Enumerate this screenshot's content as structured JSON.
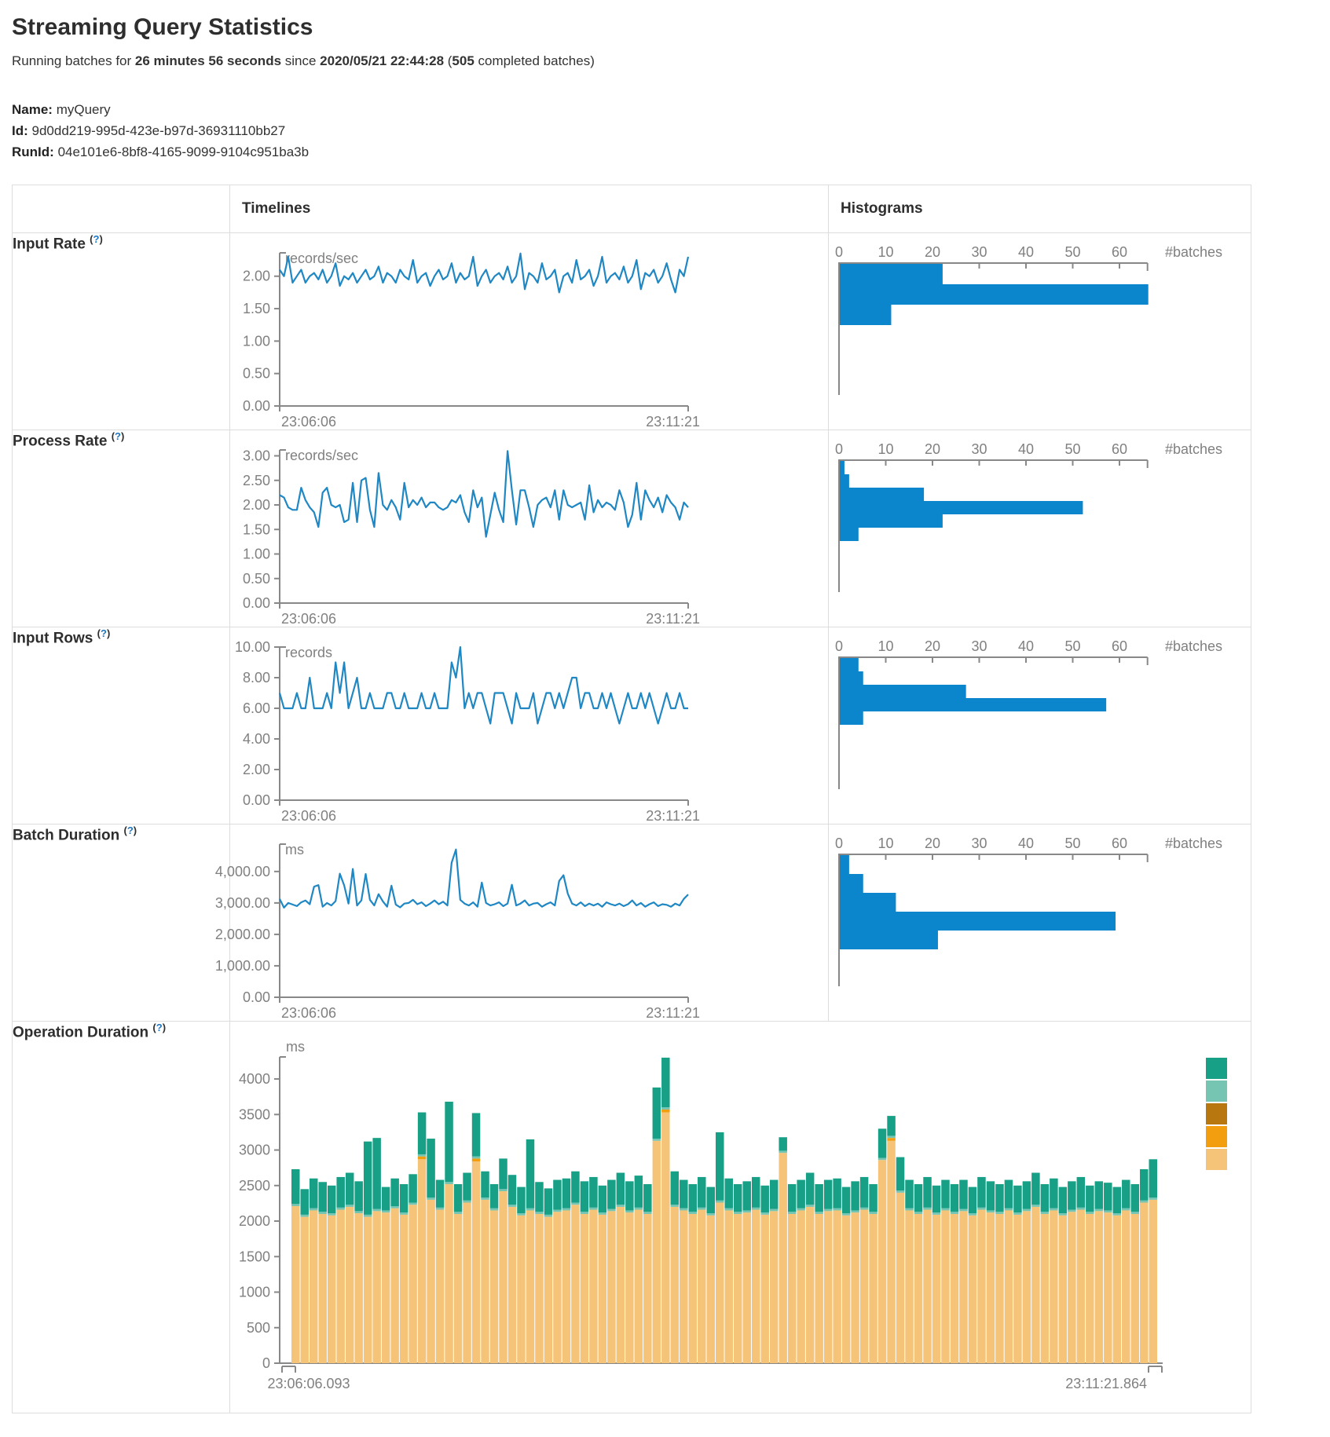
{
  "page": {
    "title": "Streaming Query Statistics",
    "subtitle": {
      "prefix": "Running batches for ",
      "duration": "26 minutes 56 seconds",
      "middle": " since ",
      "start_time": "2020/05/21 22:44:28",
      "paren": " (",
      "completed_batches": "505",
      "suffix": " completed batches)"
    },
    "query": {
      "name_label": "Name:",
      "name": "myQuery",
      "id_label": "Id:",
      "id": "9d0dd219-995d-423e-b97d-36931110bb27",
      "runid_label": "RunId:",
      "runid": "04e101e6-8bf8-4165-9099-9104c951ba3b"
    }
  },
  "help": {
    "open": "(",
    "q": "?",
    "close": ")"
  },
  "table": {
    "headers": {
      "timelines": "Timelines",
      "histograms": "Histograms"
    },
    "rows": [
      {
        "label": "Input Rate"
      },
      {
        "label": "Process Rate"
      },
      {
        "label": "Input Rows"
      },
      {
        "label": "Batch Duration"
      },
      {
        "label": "Operation Duration"
      }
    ]
  },
  "colors": {
    "timeline_line": "#1f87c3",
    "histogram_bar": "#0b85cc",
    "axis": "#888888",
    "tick_text": "#808080",
    "table_border": "#dddddd",
    "help_blue": "#1f77c0",
    "op_teal": "#17a086",
    "op_light_teal": "#75c5b2",
    "op_brown": "#b8770f",
    "op_orange": "#f29e0e",
    "op_light_orange": "#f6c478"
  },
  "chart_data": [
    {
      "id": "input-rate-timeline",
      "type": "line",
      "unit": "records/sec",
      "ymax": 2.36,
      "x_start": "23:06:06",
      "x_end": "23:11:21",
      "yticks": [
        {
          "v": 2,
          "t": "2.00"
        },
        {
          "v": 1.5,
          "t": "1.50"
        },
        {
          "v": 1,
          "t": "1.00"
        },
        {
          "v": 0.5,
          "t": "0.50"
        },
        {
          "v": 0,
          "t": "0.00"
        }
      ],
      "values": [
        2.1,
        2.0,
        2.3,
        1.9,
        2.0,
        2.1,
        1.9,
        2.0,
        2.05,
        1.95,
        2.1,
        1.9,
        2.0,
        2.2,
        1.85,
        2.0,
        1.95,
        2.05,
        1.9,
        2.0,
        2.1,
        1.95,
        2.0,
        2.15,
        1.9,
        2.05,
        2.0,
        1.9,
        2.1,
        2.0,
        1.95,
        2.25,
        1.9,
        2.0,
        2.05,
        1.85,
        2.0,
        2.1,
        1.95,
        2.0,
        2.2,
        1.9,
        2.05,
        1.95,
        2.0,
        2.3,
        1.85,
        2.0,
        2.1,
        1.9,
        2.0,
        2.05,
        1.95,
        2.15,
        1.9,
        2.0,
        2.35,
        1.8,
        2.05,
        2.0,
        1.9,
        2.2,
        1.95,
        2.0,
        2.1,
        1.75,
        2.0,
        2.05,
        1.9,
        2.25,
        1.95,
        2.0,
        2.1,
        1.85,
        2.0,
        2.3,
        1.9,
        2.0,
        2.05,
        1.95,
        2.15,
        1.9,
        2.0,
        2.25,
        1.8,
        2.05,
        2.0,
        2.1,
        1.9,
        2.0,
        2.2,
        1.95,
        1.75,
        2.1,
        2.0,
        2.3
      ]
    },
    {
      "id": "input-rate-histogram",
      "type": "hbar",
      "xlabel": "#batches",
      "xticks": [
        0,
        10,
        20,
        30,
        40,
        50,
        60
      ],
      "bin_height": 26,
      "values": [
        22,
        66,
        11
      ]
    },
    {
      "id": "process-rate-timeline",
      "type": "line",
      "unit": "records/sec",
      "ymax": 3.12,
      "x_start": "23:06:06",
      "x_end": "23:11:21",
      "yticks": [
        {
          "v": 3,
          "t": "3.00"
        },
        {
          "v": 2.5,
          "t": "2.50"
        },
        {
          "v": 2,
          "t": "2.00"
        },
        {
          "v": 1.5,
          "t": "1.50"
        },
        {
          "v": 1,
          "t": "1.00"
        },
        {
          "v": 0.5,
          "t": "0.50"
        },
        {
          "v": 0,
          "t": "0.00"
        }
      ],
      "values": [
        2.2,
        2.15,
        1.95,
        1.9,
        1.9,
        2.35,
        2.1,
        1.95,
        1.85,
        1.55,
        2.25,
        2.35,
        2.0,
        1.95,
        2.0,
        1.65,
        1.7,
        2.45,
        1.65,
        2.5,
        2.55,
        1.9,
        1.55,
        2.65,
        2.0,
        1.9,
        2.1,
        1.95,
        1.7,
        2.45,
        1.95,
        2.1,
        2.0,
        2.15,
        1.95,
        2.05,
        2.05,
        1.95,
        1.9,
        1.95,
        2.1,
        2.05,
        2.2,
        1.85,
        1.65,
        2.3,
        1.95,
        2.15,
        1.35,
        1.8,
        2.25,
        1.9,
        1.65,
        3.1,
        2.3,
        1.6,
        2.3,
        2.3,
        1.95,
        1.55,
        2.0,
        2.1,
        2.15,
        1.95,
        2.3,
        1.7,
        2.3,
        2.0,
        1.95,
        2.0,
        2.05,
        1.7,
        2.4,
        1.85,
        2.1,
        1.95,
        2.05,
        2.0,
        1.9,
        2.3,
        2.05,
        1.55,
        1.8,
        2.45,
        1.7,
        2.3,
        2.1,
        1.95,
        2.15,
        1.85,
        2.2,
        2.05,
        1.95,
        1.7,
        2.05,
        1.95
      ]
    },
    {
      "id": "process-rate-histogram",
      "type": "hbar",
      "xlabel": "#batches",
      "xticks": [
        0,
        10,
        20,
        30,
        40,
        50,
        60
      ],
      "bin_height": 17,
      "values": [
        1,
        2,
        18,
        52,
        22,
        4
      ]
    },
    {
      "id": "input-rows-timeline",
      "type": "line",
      "unit": "records",
      "ymax": 10,
      "x_start": "23:06:06",
      "x_end": "23:11:21",
      "yticks": [
        {
          "v": 10,
          "t": "10.00"
        },
        {
          "v": 8,
          "t": "8.00"
        },
        {
          "v": 6,
          "t": "6.00"
        },
        {
          "v": 4,
          "t": "4.00"
        },
        {
          "v": 2,
          "t": "2.00"
        },
        {
          "v": 0,
          "t": "0.00"
        }
      ],
      "values": [
        7,
        6,
        6,
        6,
        7,
        6,
        6,
        8,
        6,
        6,
        6,
        7,
        6,
        9,
        7,
        9,
        6,
        7,
        8,
        6,
        6,
        7,
        6,
        6,
        6,
        7,
        7,
        6,
        6,
        7,
        6,
        6,
        6,
        7,
        6,
        6,
        7,
        6,
        6,
        6,
        9,
        8,
        10,
        6,
        7,
        6,
        7,
        7,
        6,
        5,
        7,
        7,
        7,
        6,
        5,
        7,
        6,
        6,
        6,
        7,
        5,
        6,
        7,
        7,
        6,
        7,
        6,
        7,
        8,
        8,
        6,
        7,
        7,
        6,
        6,
        7,
        6,
        7,
        6,
        5,
        6,
        7,
        6,
        6,
        7,
        6,
        7,
        6,
        5,
        6,
        7,
        6,
        6,
        7,
        6,
        6
      ]
    },
    {
      "id": "input-rows-histogram",
      "type": "hbar",
      "xlabel": "#batches",
      "xticks": [
        0,
        10,
        20,
        30,
        40,
        50,
        60
      ],
      "bin_height": 17,
      "values": [
        4,
        5,
        27,
        57,
        5
      ]
    },
    {
      "id": "batch-duration-timeline",
      "type": "line",
      "unit": "ms",
      "ymax": 4870,
      "x_start": "23:06:06",
      "x_end": "23:11:21",
      "yticks": [
        {
          "v": 4000,
          "t": "4,000.00"
        },
        {
          "v": 3000,
          "t": "3,000.00"
        },
        {
          "v": 2000,
          "t": "2,000.00"
        },
        {
          "v": 1000,
          "t": "1,000.00"
        },
        {
          "v": 0,
          "t": "0.00"
        }
      ],
      "values": [
        3130,
        2850,
        3000,
        2950,
        2900,
        3020,
        3080,
        2960,
        3520,
        3570,
        2880,
        3000,
        2920,
        3060,
        3930,
        3560,
        2980,
        4080,
        2920,
        3080,
        3920,
        3100,
        2920,
        3280,
        3050,
        2880,
        3550,
        2950,
        2860,
        2980,
        3000,
        3100,
        2960,
        3020,
        2900,
        2980,
        3080,
        2960,
        3040,
        2920,
        4280,
        4700,
        3100,
        2980,
        2920,
        3020,
        2880,
        3650,
        3000,
        2920,
        2960,
        3020,
        2900,
        2980,
        3580,
        2920,
        2980,
        3080,
        2920,
        2980,
        3000,
        2880,
        2960,
        3020,
        2920,
        3700,
        3880,
        3300,
        2980,
        2920,
        3020,
        2900,
        2980,
        2920,
        2980,
        2880,
        3020,
        2960,
        2920,
        2980,
        2900,
        2960,
        3080,
        2920,
        3000,
        2880,
        2960,
        3020,
        2900,
        2960,
        2940,
        2880,
        2980,
        2920,
        3130,
        3270
      ]
    },
    {
      "id": "batch-duration-histogram",
      "type": "hbar",
      "xlabel": "#batches",
      "xticks": [
        0,
        10,
        20,
        30,
        40,
        50,
        60
      ],
      "bin_height": 24,
      "values": [
        2,
        5,
        12,
        59,
        21
      ]
    },
    {
      "id": "operation-duration",
      "type": "stacked",
      "unit": "ms",
      "ymax": 4310,
      "x_start": "23:06:06.093",
      "x_end": "23:11:21.864",
      "yticks": [
        {
          "v": 4000,
          "t": "4000"
        },
        {
          "v": 3500,
          "t": "3500"
        },
        {
          "v": 3000,
          "t": "3000"
        },
        {
          "v": 2500,
          "t": "2500"
        },
        {
          "v": 2000,
          "t": "2000"
        },
        {
          "v": 1500,
          "t": "1500"
        },
        {
          "v": 1000,
          "t": "1000"
        },
        {
          "v": 500,
          "t": "500"
        },
        {
          "v": 0,
          "t": "0"
        }
      ],
      "legend_colors": [
        "#17a086",
        "#75c5b2",
        "#b8770f",
        "#f29e0e",
        "#f6c478"
      ],
      "series": [
        {
          "name": "light-orange",
          "color": "#f6c478",
          "values": [
            2210,
            2060,
            2150,
            2100,
            2080,
            2160,
            2200,
            2110,
            2060,
            2140,
            2120,
            2180,
            2090,
            2230,
            2870,
            2300,
            2160,
            2520,
            2100,
            2260,
            2840,
            2300,
            2150,
            2420,
            2200,
            2080,
            2150,
            2100,
            2060,
            2130,
            2150,
            2230,
            2100,
            2160,
            2090,
            2140,
            2200,
            2120,
            2160,
            2100,
            3130,
            3530,
            2200,
            2150,
            2100,
            2160,
            2080,
            2260,
            2150,
            2100,
            2120,
            2160,
            2090,
            2140,
            2960,
            2100,
            2150,
            2200,
            2100,
            2140,
            2150,
            2080,
            2120,
            2160,
            2100,
            2860,
            3130,
            2400,
            2150,
            2100,
            2160,
            2090,
            2150,
            2100,
            2140,
            2080,
            2160,
            2120,
            2100,
            2150,
            2090,
            2140,
            2200,
            2100,
            2150,
            2080,
            2130,
            2160,
            2100,
            2140,
            2120,
            2080,
            2150,
            2100,
            2260,
            2300
          ]
        },
        {
          "name": "orange",
          "color": "#f29e0e",
          "values": [
            0,
            0,
            0,
            0,
            0,
            0,
            0,
            0,
            0,
            0,
            0,
            0,
            0,
            0,
            40,
            0,
            0,
            0,
            0,
            0,
            40,
            0,
            0,
            0,
            0,
            0,
            0,
            0,
            0,
            0,
            0,
            0,
            0,
            0,
            0,
            0,
            0,
            0,
            0,
            0,
            0,
            40,
            0,
            0,
            0,
            0,
            0,
            0,
            0,
            0,
            0,
            0,
            0,
            0,
            0,
            0,
            0,
            0,
            0,
            0,
            0,
            0,
            0,
            0,
            0,
            0,
            40,
            0,
            0,
            0,
            0,
            0,
            0,
            0,
            0,
            0,
            0,
            0,
            0,
            0,
            0,
            0,
            0,
            0,
            0,
            0,
            0,
            0,
            0,
            0,
            0,
            0,
            0,
            0,
            0,
            0
          ]
        },
        {
          "name": "light-teal",
          "color": "#75c5b2",
          "values": [
            30,
            30,
            30,
            30,
            30,
            30,
            30,
            30,
            30,
            30,
            30,
            30,
            30,
            30,
            30,
            30,
            30,
            30,
            30,
            30,
            30,
            30,
            30,
            30,
            30,
            30,
            30,
            30,
            30,
            30,
            30,
            30,
            30,
            30,
            30,
            30,
            30,
            30,
            30,
            30,
            30,
            30,
            30,
            30,
            30,
            30,
            30,
            30,
            30,
            30,
            30,
            30,
            30,
            30,
            30,
            30,
            30,
            30,
            30,
            30,
            30,
            30,
            30,
            30,
            30,
            30,
            30,
            30,
            30,
            30,
            30,
            30,
            30,
            30,
            30,
            30,
            30,
            30,
            30,
            30,
            30,
            30,
            30,
            30,
            30,
            30,
            30,
            30,
            30,
            30,
            30,
            30,
            30,
            30,
            30,
            30
          ]
        },
        {
          "name": "teal",
          "color": "#17a086",
          "values": [
            490,
            360,
            420,
            420,
            390,
            430,
            450,
            420,
            1030,
            1000,
            330,
            390,
            400,
            400,
            590,
            830,
            390,
            1130,
            390,
            390,
            610,
            370,
            340,
            430,
            420,
            370,
            970,
            420,
            370,
            420,
            420,
            440,
            430,
            430,
            380,
            410,
            450,
            410,
            450,
            390,
            720,
            700,
            470,
            400,
            390,
            430,
            370,
            960,
            420,
            390,
            410,
            430,
            380,
            410,
            190,
            390,
            400,
            450,
            390,
            410,
            420,
            370,
            410,
            430,
            390,
            410,
            280,
            470,
            400,
            390,
            430,
            380,
            400,
            390,
            410,
            370,
            430,
            410,
            390,
            400,
            380,
            390,
            450,
            390,
            420,
            370,
            400,
            430,
            370,
            390,
            390,
            370,
            400,
            390,
            440,
            540
          ]
        }
      ]
    }
  ]
}
